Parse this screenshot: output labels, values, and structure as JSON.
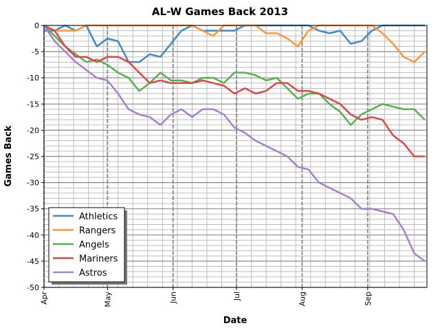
{
  "chart_data": {
    "type": "line",
    "title": "AL-W Games Back 2013",
    "xlabel": "Date",
    "ylabel": "Games Back",
    "xlim": [
      "2013-04-01",
      "2013-09-29"
    ],
    "ylim": [
      -50,
      0
    ],
    "x_ticks": [
      {
        "date": "2013-04-01",
        "label": "Apr"
      },
      {
        "date": "2013-05-01",
        "label": "May"
      },
      {
        "date": "2013-06-01",
        "label": "Jun"
      },
      {
        "date": "2013-07-01",
        "label": "Jul"
      },
      {
        "date": "2013-08-01",
        "label": "Aug"
      },
      {
        "date": "2013-09-01",
        "label": "Sep"
      }
    ],
    "y_ticks": [
      0,
      -5,
      -10,
      -15,
      -20,
      -25,
      -30,
      -35,
      -40,
      -45,
      -50
    ],
    "grid": "major and minor",
    "legend_position": "lower-left",
    "x": [
      "2013-04-01",
      "2013-04-06",
      "2013-04-11",
      "2013-04-16",
      "2013-04-21",
      "2013-04-26",
      "2013-05-01",
      "2013-05-06",
      "2013-05-11",
      "2013-05-16",
      "2013-05-21",
      "2013-05-26",
      "2013-05-31",
      "2013-06-05",
      "2013-06-10",
      "2013-06-15",
      "2013-06-20",
      "2013-06-25",
      "2013-06-30",
      "2013-07-05",
      "2013-07-10",
      "2013-07-15",
      "2013-07-20",
      "2013-07-25",
      "2013-07-30",
      "2013-08-04",
      "2013-08-09",
      "2013-08-14",
      "2013-08-19",
      "2013-08-24",
      "2013-08-29",
      "2013-09-03",
      "2013-09-08",
      "2013-09-13",
      "2013-09-18",
      "2013-09-23",
      "2013-09-28"
    ],
    "series": [
      {
        "name": "Athletics",
        "color": "#3d8ac4",
        "values": [
          -1,
          -1,
          0,
          -1,
          0,
          -4,
          -2.5,
          -3,
          -7,
          -7,
          -5.5,
          -6,
          -3.5,
          -1,
          0,
          -1,
          -1,
          -1,
          -1,
          0,
          0,
          0,
          0,
          0,
          0,
          0,
          -1,
          -1.5,
          -1,
          -3.5,
          -3,
          -1,
          0,
          0,
          0,
          0,
          0
        ]
      },
      {
        "name": "Rangers",
        "color": "#ff9533",
        "values": [
          0,
          -1,
          -1,
          -1,
          0,
          0,
          0,
          0,
          0,
          0,
          0,
          0,
          0,
          0,
          0,
          -1,
          -2,
          0,
          0,
          0,
          0,
          -1.5,
          -1.5,
          -2.5,
          -4,
          -1,
          0,
          0,
          0,
          0,
          0,
          0,
          -1.5,
          -3.5,
          -6,
          -7,
          -5
        ]
      },
      {
        "name": "Angels",
        "color": "#52b34b",
        "values": [
          0,
          -2,
          -4,
          -5.5,
          -7,
          -6.5,
          -7.5,
          -9,
          -10,
          -12.5,
          -11,
          -9,
          -10.5,
          -10.5,
          -11,
          -10,
          -10,
          -11,
          -9,
          -9,
          -9.5,
          -10.5,
          -10,
          -12,
          -14,
          -13,
          -13,
          -15,
          -16.5,
          -19,
          -17,
          -16,
          -15,
          -15.5,
          -16,
          -16,
          -18
        ]
      },
      {
        "name": "Mariners",
        "color": "#e04545",
        "values": [
          0,
          -1,
          -4,
          -6,
          -6,
          -7,
          -6,
          -6,
          -7,
          -9,
          -11,
          -10.5,
          -11,
          -11,
          -11,
          -10.5,
          -11,
          -11.5,
          -13,
          -12,
          -13,
          -12.5,
          -11,
          -11,
          -12.5,
          -12.5,
          -13,
          -14,
          -15,
          -17,
          -18,
          -17.5,
          -18,
          -21,
          -22.5,
          -25,
          -25
        ]
      },
      {
        "name": "Astros",
        "color": "#a67fcd",
        "values": [
          0,
          -3,
          -5,
          -7,
          -8.5,
          -10,
          -10.5,
          -13,
          -16,
          -17,
          -17.5,
          -19,
          -17,
          -16,
          -17.5,
          -16,
          -16,
          -17,
          -19.5,
          -20.5,
          -22,
          -23,
          -24,
          -25,
          -27,
          -27.5,
          -30,
          -31,
          -32,
          -33,
          -35,
          -35,
          -35.5,
          -36,
          -39,
          -43.5,
          -45
        ]
      }
    ]
  }
}
